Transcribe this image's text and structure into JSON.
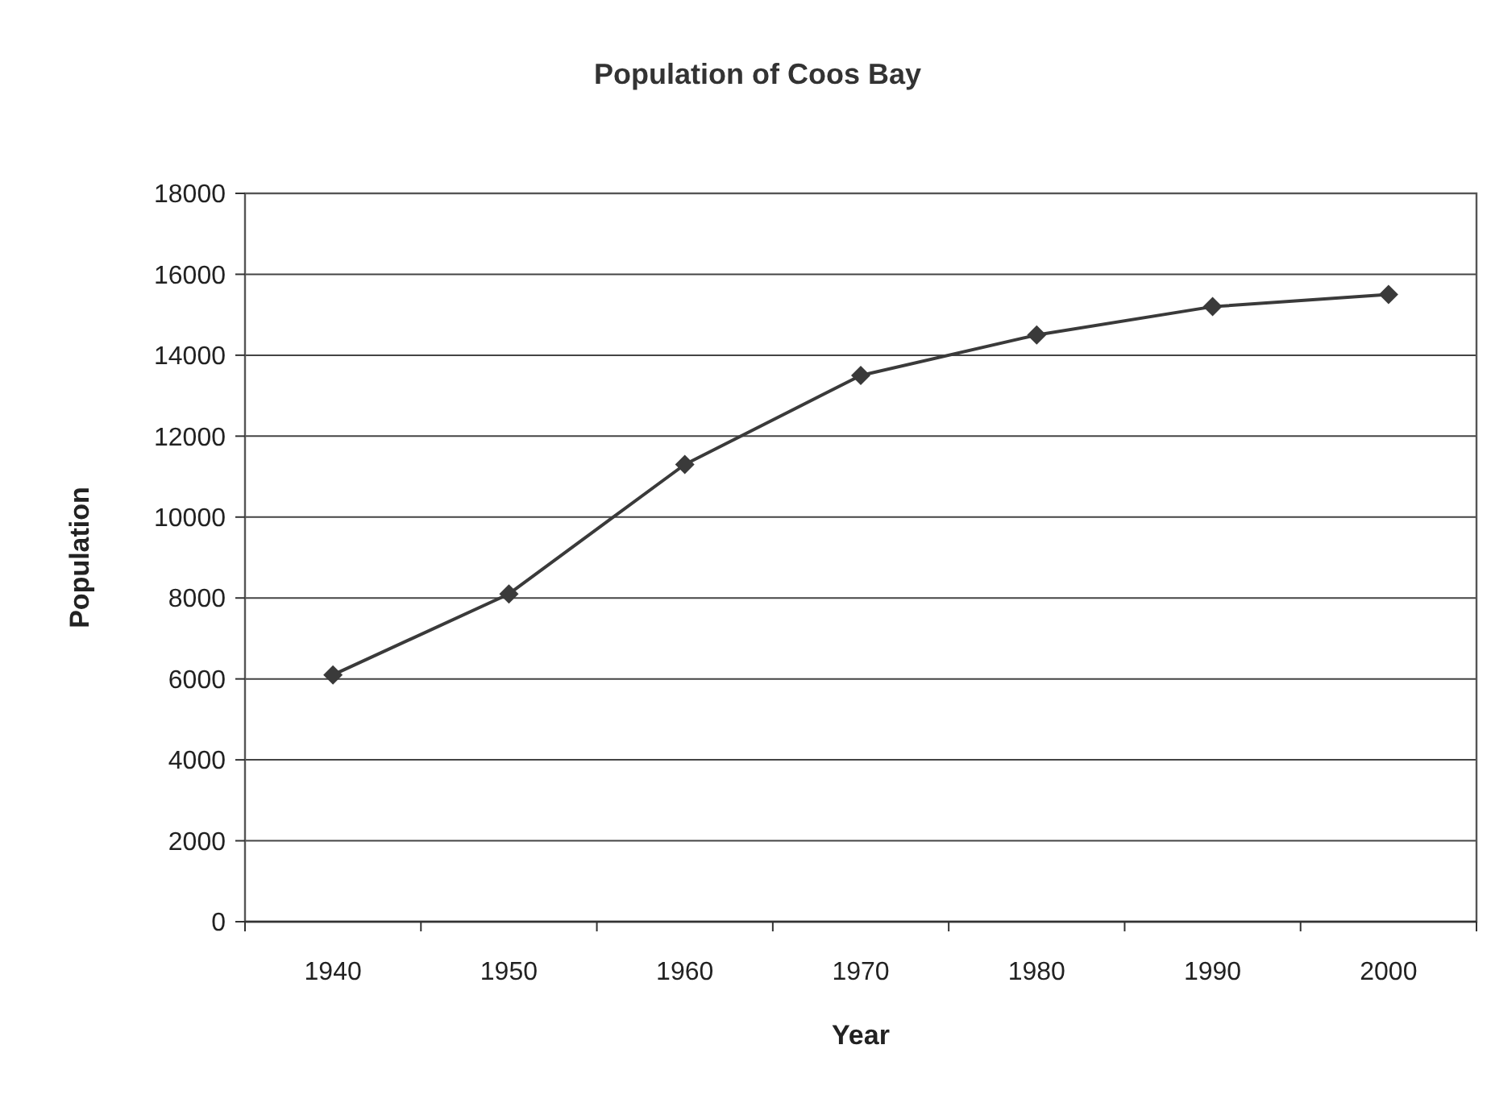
{
  "chart_data": {
    "type": "line",
    "title": "Population of Coos Bay",
    "xlabel": "Year",
    "ylabel": "Population",
    "categories": [
      "1940",
      "1950",
      "1960",
      "1970",
      "1980",
      "1990",
      "2000"
    ],
    "series": [
      {
        "color": "#3a3a3a",
        "values": [
          6100,
          8100,
          11300,
          13500,
          14500,
          15200,
          15500
        ]
      }
    ],
    "ylim": [
      0,
      18000
    ],
    "yticks": [
      0,
      2000,
      4000,
      6000,
      8000,
      10000,
      12000,
      14000,
      16000,
      18000
    ],
    "grid": "y",
    "marker": "diamond",
    "line_style": "solid"
  }
}
